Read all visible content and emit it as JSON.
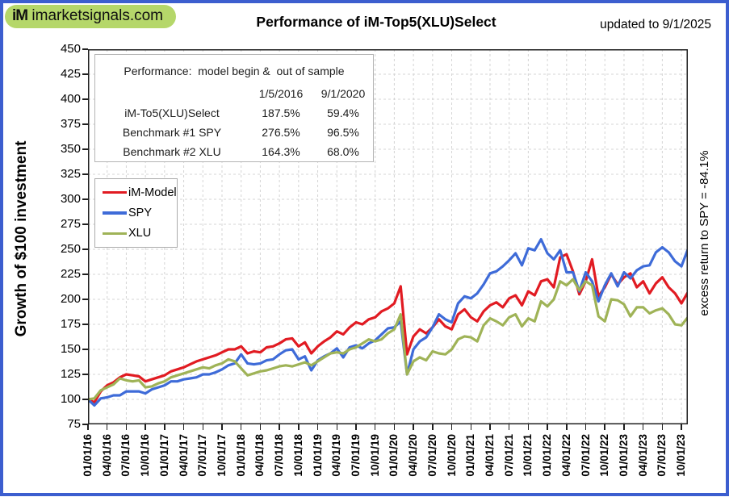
{
  "header": {
    "logo_im": "iM",
    "logo_domain": "imarketsignals.com",
    "title": "Performance of iM-Top5(XLU)Select",
    "updated": "updated to  9/1/2025"
  },
  "y_axis": {
    "label": "Growth of $100 investment",
    "min": 75,
    "max": 450,
    "step": 25
  },
  "right_label": "excess return to SPY = -84.1%",
  "inset_table": {
    "title": "Performance:  model begin &  out of sample",
    "col_headers": [
      "1/5/2016",
      "9/1/2020"
    ],
    "rows": [
      {
        "label": "iM-To5(XLU)Select",
        "values": [
          "187.5%",
          "59.4%"
        ]
      },
      {
        "label": "Benchmark #1 SPY",
        "values": [
          "276.5%",
          "96.5%"
        ]
      },
      {
        "label": "Benchmark #2 XLU",
        "values": [
          "164.3%",
          "68.0%"
        ]
      }
    ]
  },
  "legend": [
    {
      "label": "iM-Model",
      "color": "#e11b22"
    },
    {
      "label": "SPY",
      "color": "#3e6bd8"
    },
    {
      "label": "XLU",
      "color": "#9fb357"
    }
  ],
  "chart_data": {
    "type": "line",
    "title": "Performance of iM-Top5(XLU)Select",
    "xlabel": "",
    "ylabel": "Growth of $100 investment",
    "ylim": [
      75,
      450
    ],
    "y_tick_step": 25,
    "grid": true,
    "legend_position": "upper-left-inside",
    "x_tick_labels": [
      "01/01/16",
      "04/01/16",
      "07/01/16",
      "10/01/16",
      "01/01/17",
      "04/01/17",
      "07/01/17",
      "10/01/17",
      "01/01/18",
      "04/01/18",
      "07/01/18",
      "10/01/18",
      "01/01/19",
      "04/01/19",
      "07/01/19",
      "10/01/19",
      "01/01/20",
      "04/01/20",
      "07/01/20",
      "10/01/20",
      "01/01/21",
      "04/01/21",
      "07/01/21",
      "10/01/21",
      "01/01/22",
      "04/01/22",
      "07/01/22",
      "10/01/22",
      "01/01/23",
      "04/01/23",
      "07/01/23",
      "10/01/23"
    ],
    "months": [
      "2016-01",
      "2016-02",
      "2016-03",
      "2016-04",
      "2016-05",
      "2016-06",
      "2016-07",
      "2016-08",
      "2016-09",
      "2016-10",
      "2016-11",
      "2016-12",
      "2017-01",
      "2017-02",
      "2017-03",
      "2017-04",
      "2017-05",
      "2017-06",
      "2017-07",
      "2017-08",
      "2017-09",
      "2017-10",
      "2017-11",
      "2017-12",
      "2018-01",
      "2018-02",
      "2018-03",
      "2018-04",
      "2018-05",
      "2018-06",
      "2018-07",
      "2018-08",
      "2018-09",
      "2018-10",
      "2018-11",
      "2018-12",
      "2019-01",
      "2019-02",
      "2019-03",
      "2019-04",
      "2019-05",
      "2019-06",
      "2019-07",
      "2019-08",
      "2019-09",
      "2019-10",
      "2019-11",
      "2019-12",
      "2020-01",
      "2020-02",
      "2020-03",
      "2020-04",
      "2020-05",
      "2020-06",
      "2020-07",
      "2020-08",
      "2020-09",
      "2020-10",
      "2020-11",
      "2020-12",
      "2021-01",
      "2021-02",
      "2021-03",
      "2021-04",
      "2021-05",
      "2021-06",
      "2021-07",
      "2021-08",
      "2021-09",
      "2021-10",
      "2021-11",
      "2021-12",
      "2022-01",
      "2022-02",
      "2022-03",
      "2022-04",
      "2022-05",
      "2022-06",
      "2022-07",
      "2022-08",
      "2022-09",
      "2022-10",
      "2022-11",
      "2022-12",
      "2023-01",
      "2023-02",
      "2023-03",
      "2023-04",
      "2023-05",
      "2023-06",
      "2023-07",
      "2023-08",
      "2023-09",
      "2023-10",
      "2023-11"
    ],
    "series": [
      {
        "name": "iM-Model",
        "color": "#e11b22",
        "values": [
          100,
          97,
          108,
          114,
          117,
          122,
          125,
          124,
          123,
          118,
          120,
          122,
          124,
          128,
          130,
          132,
          135,
          138,
          140,
          142,
          144,
          147,
          150,
          150,
          153,
          146,
          148,
          147,
          152,
          153,
          156,
          160,
          161,
          153,
          157,
          146,
          153,
          158,
          162,
          168,
          165,
          172,
          177,
          175,
          180,
          182,
          188,
          191,
          196,
          213,
          145,
          163,
          170,
          166,
          172,
          180,
          173,
          170,
          185,
          190,
          182,
          178,
          188,
          194,
          197,
          192,
          201,
          204,
          194,
          208,
          204,
          218,
          220,
          212,
          242,
          245,
          228,
          205,
          218,
          240,
          203,
          212,
          225,
          215,
          222,
          226,
          212,
          218,
          206,
          216,
          222,
          212,
          206,
          196,
          207
        ]
      },
      {
        "name": "SPY",
        "color": "#3e6bd8",
        "values": [
          100,
          94,
          101,
          102,
          104,
          104,
          108,
          108,
          108,
          106,
          110,
          112,
          114,
          118,
          118,
          120,
          121,
          122,
          125,
          125,
          127,
          130,
          134,
          136,
          145,
          136,
          135,
          136,
          139,
          140,
          145,
          149,
          150,
          140,
          143,
          129,
          139,
          143,
          146,
          151,
          142,
          152,
          154,
          151,
          156,
          159,
          165,
          171,
          172,
          178,
          125,
          150,
          158,
          162,
          172,
          185,
          180,
          177,
          196,
          203,
          201,
          206,
          215,
          226,
          228,
          233,
          239,
          246,
          234,
          251,
          249,
          260,
          246,
          240,
          249,
          227,
          227,
          208,
          227,
          218,
          198,
          214,
          226,
          213,
          227,
          221,
          229,
          233,
          234,
          247,
          252,
          247,
          238,
          233,
          250
        ]
      },
      {
        "name": "XLU",
        "color": "#9fb357",
        "values": [
          100,
          101,
          109,
          112,
          115,
          121,
          119,
          118,
          119,
          112,
          113,
          116,
          118,
          122,
          124,
          126,
          128,
          130,
          132,
          131,
          134,
          136,
          140,
          138,
          131,
          124,
          126,
          128,
          129,
          131,
          133,
          134,
          133,
          135,
          137,
          134,
          138,
          142,
          146,
          147,
          146,
          150,
          152,
          156,
          160,
          158,
          160,
          166,
          170,
          185,
          125,
          138,
          142,
          139,
          148,
          146,
          145,
          150,
          160,
          163,
          162,
          158,
          174,
          181,
          178,
          174,
          182,
          185,
          173,
          181,
          178,
          198,
          193,
          200,
          218,
          214,
          220,
          209,
          218,
          214,
          183,
          178,
          200,
          199,
          195,
          183,
          192,
          192,
          186,
          189,
          191,
          185,
          175,
          174,
          182
        ]
      }
    ]
  }
}
